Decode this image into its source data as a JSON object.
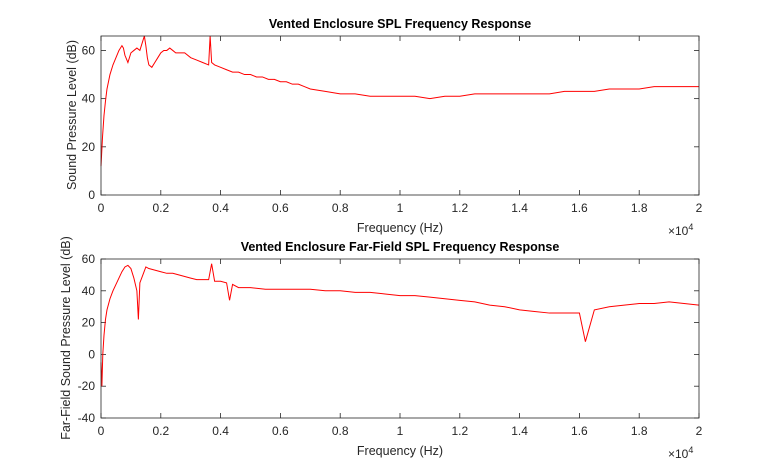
{
  "chart_data": [
    {
      "type": "line",
      "title": "Vented Enclosure SPL Frequency Response",
      "xlabel": "Frequency (Hz)",
      "ylabel": "Sound Pressure Level (dB)",
      "xlim": [
        0,
        20000
      ],
      "ylim": [
        0,
        66
      ],
      "x_tick_labels": [
        "0",
        "0.2",
        "0.4",
        "0.6",
        "0.8",
        "1",
        "1.2",
        "1.4",
        "1.6",
        "1.8",
        "2"
      ],
      "x_exponent_label": "×10",
      "x_exponent_power": "4",
      "y_ticks": [
        0,
        20,
        40,
        60
      ],
      "line_color": "#ff0000",
      "grid": false,
      "series": [
        {
          "x": [
            0,
            50,
            100,
            150,
            200,
            300,
            400,
            500,
            600,
            700,
            750,
            800,
            900,
            1000,
            1100,
            1200,
            1300,
            1400,
            1450,
            1500,
            1550,
            1600,
            1700,
            1800,
            1900,
            2000,
            2100,
            2200,
            2300,
            2400,
            2500,
            2600,
            2800,
            3000,
            3200,
            3400,
            3600,
            3650,
            3700,
            3800,
            4000,
            4200,
            4400,
            4600,
            4800,
            5000,
            5200,
            5400,
            5600,
            5800,
            6000,
            6200,
            6400,
            6600,
            6800,
            7000,
            7500,
            8000,
            8500,
            9000,
            9500,
            10000,
            10500,
            11000,
            11500,
            12000,
            12500,
            13000,
            13500,
            14000,
            14500,
            15000,
            15500,
            16000,
            16500,
            17000,
            17500,
            18000,
            18500,
            19000,
            19500,
            20000
          ],
          "y": [
            12,
            24,
            33,
            39,
            44,
            50,
            54,
            57,
            60,
            62,
            61,
            58,
            55,
            59,
            60,
            61,
            60,
            64,
            66,
            62,
            57,
            54,
            53,
            55,
            57,
            59,
            60,
            60,
            61,
            60,
            59,
            59,
            59,
            57,
            56,
            55,
            54,
            66,
            55,
            54,
            53,
            52,
            51,
            51,
            50,
            50,
            49,
            49,
            48,
            48,
            47,
            47,
            46,
            46,
            45,
            44,
            43,
            42,
            42,
            41,
            41,
            41,
            41,
            40,
            41,
            41,
            42,
            42,
            42,
            42,
            42,
            42,
            43,
            43,
            43,
            44,
            44,
            44,
            45,
            45,
            45,
            45
          ]
        }
      ]
    },
    {
      "type": "line",
      "title": "Vented Enclosure Far-Field SPL Frequency Response",
      "xlabel": "Frequency (Hz)",
      "ylabel": "Far-Field Sound Pressure Level (dB)",
      "xlim": [
        0,
        20000
      ],
      "ylim": [
        -40,
        60
      ],
      "x_tick_labels": [
        "0",
        "0.2",
        "0.4",
        "0.6",
        "0.8",
        "1",
        "1.2",
        "1.4",
        "1.6",
        "1.8",
        "2"
      ],
      "x_exponent_label": "×10",
      "x_exponent_power": "4",
      "y_ticks": [
        -40,
        -20,
        0,
        20,
        40,
        60
      ],
      "line_color": "#ff0000",
      "grid": false,
      "series": [
        {
          "x": [
            0,
            30,
            60,
            100,
            150,
            200,
            300,
            400,
            500,
            600,
            700,
            800,
            900,
            1000,
            1100,
            1200,
            1250,
            1300,
            1400,
            1500,
            1600,
            1800,
            2000,
            2200,
            2400,
            2600,
            2800,
            3000,
            3200,
            3400,
            3600,
            3700,
            3800,
            4000,
            4200,
            4300,
            4400,
            4600,
            4800,
            5000,
            5500,
            6000,
            6500,
            7000,
            7500,
            8000,
            8500,
            9000,
            9500,
            10000,
            10500,
            11000,
            11500,
            12000,
            12500,
            13000,
            13500,
            14000,
            14500,
            15000,
            15500,
            16000,
            16200,
            16500,
            17000,
            17500,
            18000,
            18500,
            19000,
            19500,
            20000
          ],
          "y": [
            -5,
            -20,
            0,
            12,
            22,
            28,
            35,
            40,
            44,
            48,
            52,
            55,
            56,
            54,
            48,
            40,
            22,
            45,
            50,
            55,
            54,
            53,
            52,
            51,
            51,
            50,
            49,
            48,
            47,
            47,
            47,
            57,
            46,
            46,
            45,
            34,
            44,
            42,
            42,
            42,
            41,
            41,
            41,
            41,
            40,
            40,
            39,
            39,
            38,
            37,
            37,
            36,
            35,
            34,
            33,
            31,
            30,
            28,
            27,
            26,
            26,
            26,
            8,
            28,
            30,
            31,
            32,
            32,
            33,
            32,
            31
          ]
        }
      ]
    }
  ]
}
